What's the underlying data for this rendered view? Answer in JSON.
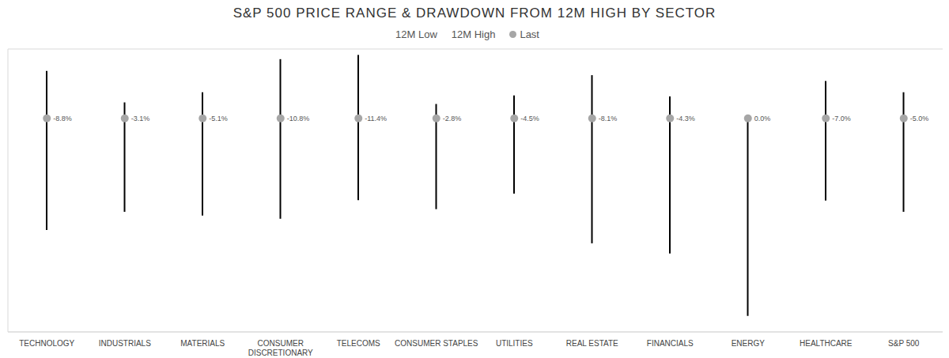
{
  "chart_data": {
    "type": "range",
    "title": "S&P 500 PRICE RANGE & DRAWDOWN FROM 12M HIGH BY SECTOR",
    "categories": [
      "TECHNOLOGY",
      "INDUSTRIALS",
      "MATERIALS",
      "CONSUMER DISCRETIONARY",
      "TELECOMS",
      "CONSUMER STAPLES",
      "UTILITIES",
      "REAL ESTATE",
      "FINANCIALS",
      "ENERGY",
      "HEALTHCARE",
      "S&P 500"
    ],
    "series": [
      {
        "name": "12M Low",
        "color": "#000000",
        "values": [
          -20.9,
          -17.5,
          -18.2,
          -18.8,
          -15.3,
          -17.0,
          -14.1,
          -23.4,
          -25.3,
          -37.0,
          -15.4,
          -17.5
        ]
      },
      {
        "name": "12M High",
        "color": "#000000",
        "values": [
          8.9,
          3.0,
          4.9,
          11.1,
          11.9,
          2.7,
          4.3,
          8.1,
          4.1,
          0.0,
          7.0,
          4.9
        ]
      },
      {
        "name": "Last",
        "color": "#a6a6a6",
        "marker": "circle",
        "values": [
          0,
          0,
          0,
          0,
          0,
          0,
          0,
          0,
          0,
          0,
          0,
          0
        ]
      }
    ],
    "drawdown_labels": [
      "-8.8%",
      "-3.1%",
      "-5.1%",
      "-10.8%",
      "-11.4%",
      "-2.8%",
      "-4.5%",
      "-8.1%",
      "-4.3%",
      "0.0%",
      "-7.0%",
      "-5.0%"
    ],
    "ylim": [
      -40,
      13
    ],
    "yticks": [
      -40,
      -30,
      -20,
      -10,
      0,
      10
    ],
    "grid": true,
    "legend": "top",
    "tick_labels": "x"
  }
}
